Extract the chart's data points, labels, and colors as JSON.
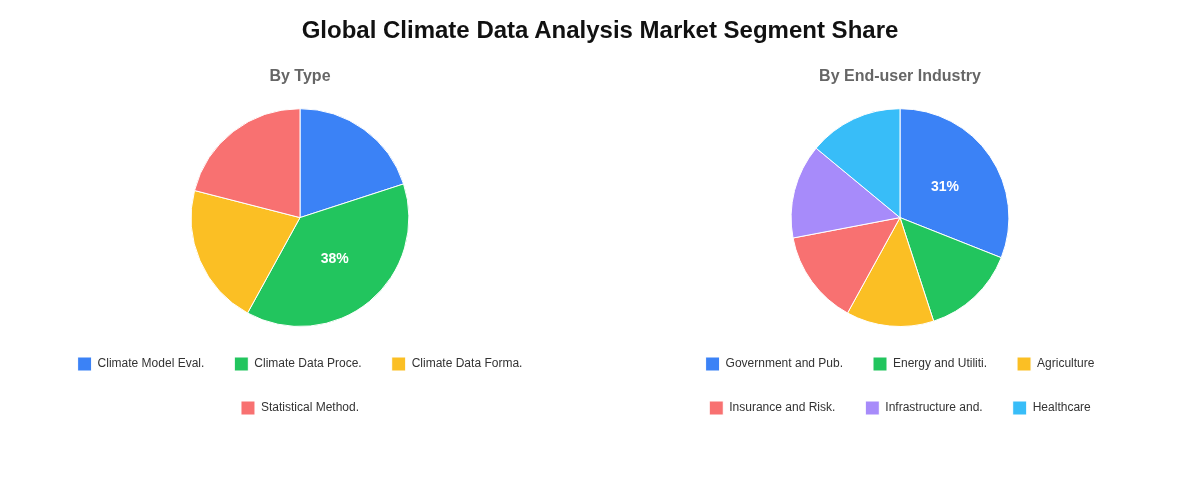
{
  "chart_data": [
    {
      "type": "pie",
      "title": "Global Climate Data Analysis Market Segment Share",
      "subtitle": "By Type",
      "categories": [
        "Climate Model Eval.",
        "Climate Data Proce.",
        "Climate Data Forma.",
        "Statistical Method."
      ],
      "values": [
        20,
        38,
        21,
        21
      ],
      "colors": [
        "#3b82f6",
        "#22c55e",
        "#fbbf24",
        "#f87171"
      ],
      "value_labels": [
        null,
        "38%",
        null,
        null
      ],
      "legend": "bottom"
    },
    {
      "type": "pie",
      "subtitle": "By End-user Industry",
      "categories": [
        "Government and Pub.",
        "Energy and Utiliti.",
        "Agriculture",
        "Insurance and Risk.",
        "Infrastructure and.",
        "Healthcare"
      ],
      "values": [
        31,
        14,
        13,
        14,
        14,
        14
      ],
      "colors": [
        "#3b82f6",
        "#22c55e",
        "#fbbf24",
        "#f87171",
        "#a78bfa",
        "#38bdf8"
      ],
      "value_labels": [
        "31%",
        null,
        null,
        null,
        null,
        null
      ],
      "legend": "bottom"
    }
  ]
}
